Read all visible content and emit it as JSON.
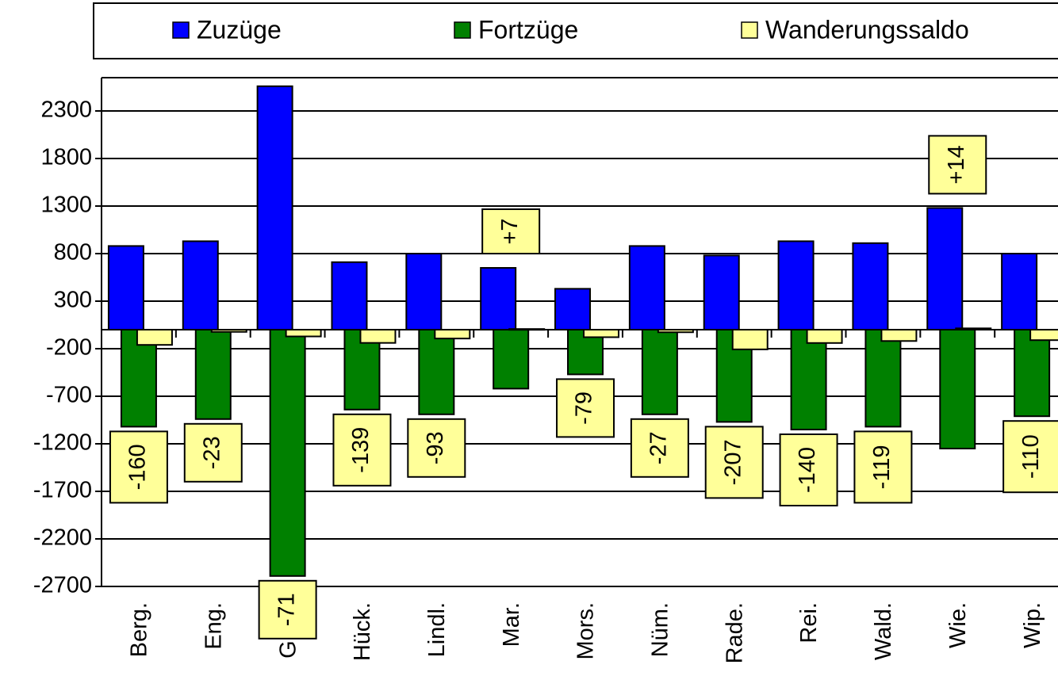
{
  "chart_data": {
    "type": "bar",
    "categories": [
      "Berg.",
      "Eng.",
      "Gum.",
      "Hück.",
      "Lindl.",
      "Mar.",
      "Mors.",
      "Nüm.",
      "Rade.",
      "Rei.",
      "Wald.",
      "Wie.",
      "Wip."
    ],
    "series": [
      {
        "name": "Zuzüge",
        "color": "#0000ff",
        "values": [
          880,
          930,
          2560,
          710,
          800,
          650,
          430,
          880,
          780,
          930,
          910,
          1280,
          800
        ]
      },
      {
        "name": "Fortzüge",
        "color": "#008000",
        "values": [
          -1020,
          -940,
          -2590,
          -840,
          -890,
          -620,
          -470,
          -890,
          -970,
          -1050,
          -1020,
          -1250,
          -910
        ]
      },
      {
        "name": "Wanderungssaldo",
        "color": "#ffff99",
        "values": [
          -160,
          -23,
          -71,
          -139,
          -93,
          7,
          -79,
          -27,
          -207,
          -140,
          -119,
          14,
          -110
        ],
        "value_labels": [
          "-160",
          "-23",
          "-71",
          "-139",
          "-93",
          "+7",
          "-79",
          "-27",
          "-207",
          "-140",
          "-119",
          "+14",
          "-110"
        ]
      }
    ],
    "ylim": [
      -2700,
      2650
    ],
    "yticks": [
      2300,
      1800,
      1300,
      800,
      300,
      -200,
      -700,
      -1200,
      -1700,
      -2200,
      -2700
    ],
    "grid": true,
    "legend": "top"
  }
}
